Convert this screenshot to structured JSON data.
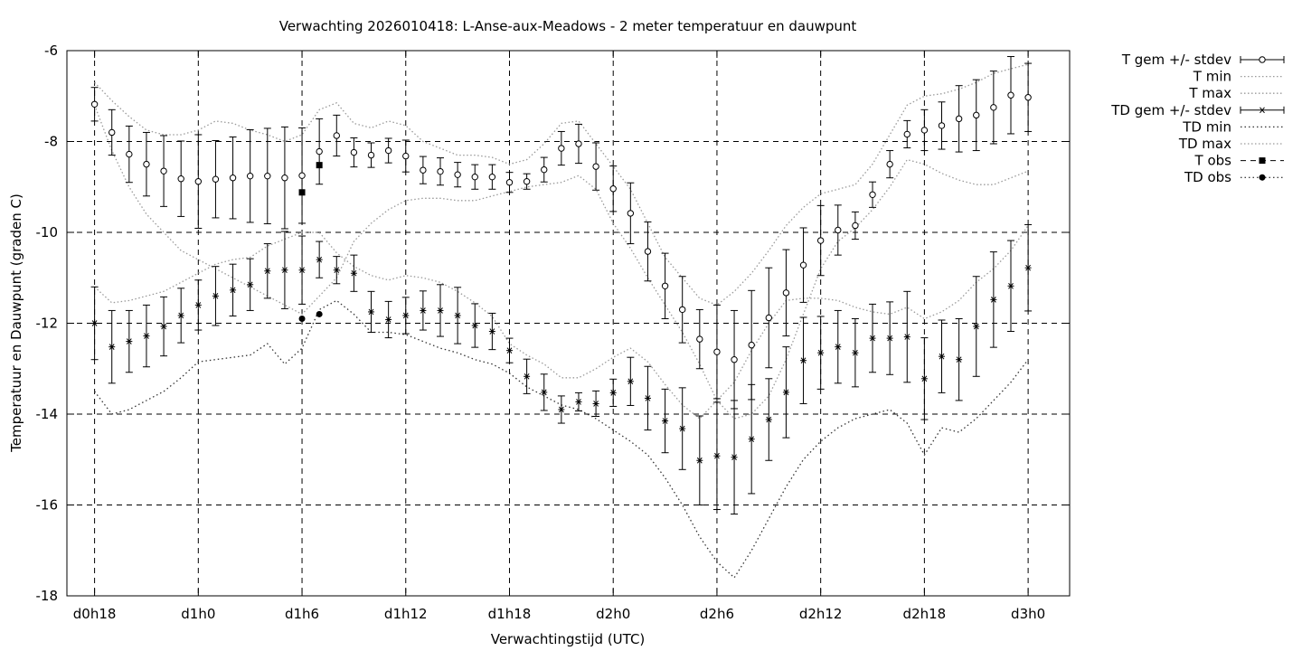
{
  "chart_data": {
    "type": "line",
    "title": "Verwachting 2026010418: L-Anse-aux-Meadows - 2 meter temperatuur en dauwpunt",
    "xlabel": "Verwachtingstijd (UTC)",
    "ylabel": "Temperatuur en Dauwpunt (graden C)",
    "ylim": [
      -18,
      -6
    ],
    "yticks": [
      -6,
      -8,
      -10,
      -12,
      -14,
      -16,
      -18
    ],
    "xticks": [
      {
        "h": 0,
        "label": "d0h18"
      },
      {
        "h": 6,
        "label": "d1h0"
      },
      {
        "h": 12,
        "label": "d1h6"
      },
      {
        "h": 18,
        "label": "d1h12"
      },
      {
        "h": 24,
        "label": "d1h18"
      },
      {
        "h": 30,
        "label": "d2h0"
      },
      {
        "h": 36,
        "label": "d2h6"
      },
      {
        "h": 42,
        "label": "d2h12"
      },
      {
        "h": 48,
        "label": "d2h18"
      },
      {
        "h": 54,
        "label": "d3h0"
      }
    ],
    "xlim": [
      -1.6,
      56.4
    ],
    "grid": true,
    "legend_position": "outside-top-right",
    "legend": [
      {
        "label": "T gem +/- stdev",
        "style": "errorbar-circle"
      },
      {
        "label": "T min",
        "style": "dotted-light"
      },
      {
        "label": "T max",
        "style": "dotted-light"
      },
      {
        "label": "TD gem +/- stdev",
        "style": "errorbar-star"
      },
      {
        "label": "TD min",
        "style": "dotted-dark"
      },
      {
        "label": "TD max",
        "style": "dotted-light"
      },
      {
        "label": "T obs",
        "style": "square"
      },
      {
        "label": "TD obs",
        "style": "dot"
      }
    ],
    "x_hours": [
      0,
      1,
      2,
      3,
      4,
      5,
      6,
      7,
      8,
      9,
      10,
      11,
      12,
      13,
      14,
      15,
      16,
      17,
      18,
      19,
      20,
      21,
      22,
      23,
      24,
      25,
      26,
      27,
      28,
      29,
      30,
      31,
      32,
      33,
      34,
      35,
      36,
      37,
      38,
      39,
      40,
      41,
      42,
      43,
      44,
      45,
      46,
      47,
      48,
      49,
      50,
      51,
      52,
      53,
      54
    ],
    "series": [
      {
        "name": "T gem +/- stdev",
        "mean": [
          -7.18,
          -7.8,
          -8.28,
          -8.5,
          -8.65,
          -8.82,
          -8.88,
          -8.83,
          -8.8,
          -8.76,
          -8.76,
          -8.8,
          -8.75,
          -8.22,
          -7.87,
          -8.24,
          -8.3,
          -8.2,
          -8.32,
          -8.63,
          -8.66,
          -8.73,
          -8.78,
          -8.78,
          -8.9,
          -8.88,
          -8.62,
          -8.15,
          -8.05,
          -8.55,
          -9.04,
          -9.58,
          -10.42,
          -11.18,
          -11.7,
          -12.35,
          -12.63,
          -12.8,
          -12.48,
          -11.88,
          -11.33,
          -10.72,
          -10.18,
          -9.95,
          -9.85,
          -9.17,
          -8.5,
          -7.84,
          -7.75,
          -7.65,
          -7.5,
          -7.42,
          -7.25,
          -6.98,
          -7.03
        ],
        "stdev": [
          0.37,
          0.5,
          0.62,
          0.7,
          0.78,
          0.83,
          1.03,
          0.85,
          0.9,
          1.02,
          1.05,
          1.12,
          1.05,
          0.72,
          0.45,
          0.32,
          0.27,
          0.27,
          0.35,
          0.3,
          0.3,
          0.27,
          0.27,
          0.27,
          0.22,
          0.17,
          0.27,
          0.37,
          0.43,
          0.52,
          0.5,
          0.67,
          0.65,
          0.72,
          0.73,
          0.65,
          1.03,
          1.08,
          1.2,
          1.1,
          0.95,
          0.82,
          0.77,
          0.55,
          0.3,
          0.28,
          0.3,
          0.3,
          0.45,
          0.52,
          0.73,
          0.78,
          0.8,
          0.85,
          0.75
        ]
      },
      {
        "name": "T min",
        "values": [
          -7.2,
          -8.2,
          -9.0,
          -9.6,
          -10.0,
          -10.4,
          -10.6,
          -10.8,
          -11.0,
          -11.2,
          -11.4,
          -11.6,
          -11.8,
          -11.4,
          -11.0,
          -10.2,
          -9.8,
          -9.5,
          -9.3,
          -9.25,
          -9.25,
          -9.3,
          -9.3,
          -9.2,
          -9.1,
          -9.0,
          -8.95,
          -8.9,
          -8.75,
          -9.05,
          -9.8,
          -10.35,
          -11.0,
          -11.6,
          -12.2,
          -12.9,
          -13.7,
          -14.1,
          -14.0,
          -13.6,
          -12.8,
          -11.8,
          -10.8,
          -10.2,
          -9.9,
          -9.5,
          -9.0,
          -8.4,
          -8.5,
          -8.7,
          -8.85,
          -8.95,
          -8.95,
          -8.8,
          -8.65
        ]
      },
      {
        "name": "T max",
        "values": [
          -6.7,
          -7.1,
          -7.45,
          -7.75,
          -7.85,
          -7.85,
          -7.75,
          -7.55,
          -7.6,
          -7.75,
          -7.85,
          -8.0,
          -7.85,
          -7.3,
          -7.15,
          -7.6,
          -7.7,
          -7.55,
          -7.65,
          -8.0,
          -8.15,
          -8.3,
          -8.3,
          -8.35,
          -8.5,
          -8.4,
          -8.05,
          -7.6,
          -7.55,
          -8.05,
          -8.55,
          -9.05,
          -9.8,
          -10.55,
          -11.0,
          -11.45,
          -11.6,
          -11.3,
          -10.9,
          -10.4,
          -9.85,
          -9.45,
          -9.15,
          -9.05,
          -8.95,
          -8.5,
          -7.85,
          -7.2,
          -7.0,
          -6.95,
          -6.85,
          -6.7,
          -6.5,
          -6.4,
          -6.3
        ]
      },
      {
        "name": "TD gem +/- stdev",
        "mean": [
          -12.0,
          -12.52,
          -12.4,
          -12.28,
          -12.07,
          -11.83,
          -11.6,
          -11.4,
          -11.27,
          -11.15,
          -10.85,
          -10.83,
          -10.83,
          -10.6,
          -10.83,
          -10.9,
          -11.75,
          -11.92,
          -11.83,
          -11.72,
          -11.72,
          -11.83,
          -12.05,
          -12.18,
          -12.6,
          -13.17,
          -13.52,
          -13.9,
          -13.73,
          -13.77,
          -13.53,
          -13.28,
          -13.65,
          -14.15,
          -14.32,
          -15.02,
          -14.92,
          -14.95,
          -14.55,
          -14.12,
          -13.52,
          -12.82,
          -12.65,
          -12.52,
          -12.65,
          -12.33,
          -12.33,
          -12.3,
          -13.22,
          -12.73,
          -12.8,
          -12.07,
          -11.48,
          -11.18,
          -10.78
        ],
        "stdev": [
          0.8,
          0.8,
          0.68,
          0.68,
          0.65,
          0.6,
          0.55,
          0.65,
          0.57,
          0.57,
          0.6,
          0.85,
          0.75,
          0.4,
          0.3,
          0.4,
          0.45,
          0.4,
          0.4,
          0.43,
          0.57,
          0.62,
          0.48,
          0.4,
          0.27,
          0.38,
          0.4,
          0.3,
          0.2,
          0.28,
          0.3,
          0.53,
          0.7,
          0.7,
          0.9,
          0.98,
          1.18,
          1.25,
          1.2,
          0.9,
          1.0,
          0.95,
          0.8,
          0.8,
          0.75,
          0.75,
          0.8,
          1.0,
          0.9,
          0.8,
          0.9,
          1.1,
          1.05,
          1.0,
          0.95
        ]
      },
      {
        "name": "TD min",
        "values": [
          -13.5,
          -14.0,
          -13.9,
          -13.7,
          -13.5,
          -13.2,
          -12.85,
          -12.8,
          -12.75,
          -12.7,
          -12.45,
          -12.9,
          -12.55,
          -11.7,
          -11.5,
          -11.8,
          -12.2,
          -12.2,
          -12.25,
          -12.4,
          -12.55,
          -12.65,
          -12.8,
          -12.9,
          -13.1,
          -13.4,
          -13.6,
          -13.8,
          -13.9,
          -14.1,
          -14.35,
          -14.6,
          -14.9,
          -15.4,
          -16.0,
          -16.7,
          -17.25,
          -17.6,
          -17.0,
          -16.3,
          -15.6,
          -15.0,
          -14.6,
          -14.3,
          -14.1,
          -14.0,
          -13.9,
          -14.2,
          -14.9,
          -14.3,
          -14.4,
          -14.1,
          -13.7,
          -13.3,
          -12.8
        ]
      },
      {
        "name": "TD max",
        "values": [
          -11.2,
          -11.55,
          -11.5,
          -11.4,
          -11.3,
          -11.1,
          -10.9,
          -10.7,
          -10.6,
          -10.55,
          -10.3,
          -10.15,
          -10.0,
          -10.0,
          -10.45,
          -10.75,
          -10.95,
          -11.05,
          -10.95,
          -11.0,
          -11.1,
          -11.3,
          -11.55,
          -11.85,
          -12.45,
          -12.7,
          -12.9,
          -13.2,
          -13.2,
          -13.0,
          -12.75,
          -12.55,
          -12.85,
          -13.35,
          -13.8,
          -14.1,
          -13.7,
          -13.3,
          -12.6,
          -12.0,
          -11.5,
          -11.45,
          -11.45,
          -11.5,
          -11.65,
          -11.75,
          -11.8,
          -11.65,
          -11.9,
          -11.75,
          -11.5,
          -11.1,
          -10.8,
          -10.4,
          -9.85
        ]
      },
      {
        "name": "T obs",
        "points": [
          {
            "h": 12,
            "value": -9.12
          },
          {
            "h": 13,
            "value": -8.52
          }
        ]
      },
      {
        "name": "TD obs",
        "points": [
          {
            "h": 12,
            "value": -11.9
          },
          {
            "h": 13,
            "value": -11.8
          }
        ]
      }
    ]
  }
}
